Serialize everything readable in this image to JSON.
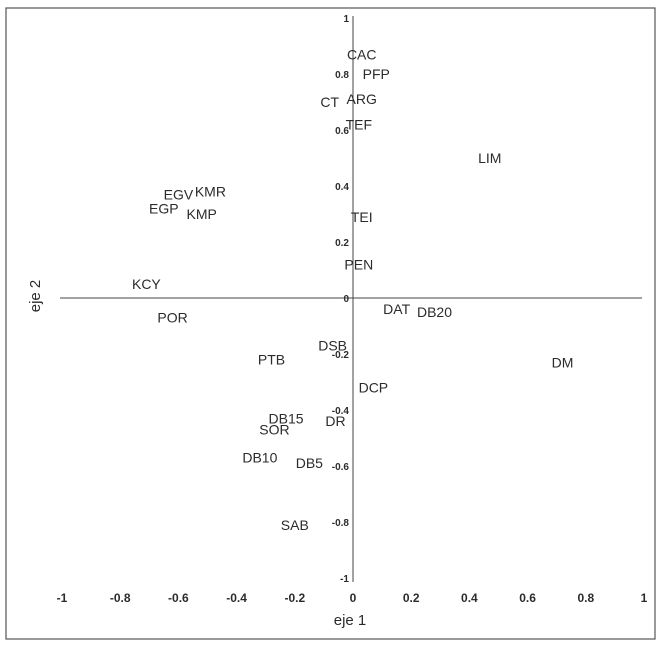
{
  "chart_data": {
    "type": "scatter",
    "title": "",
    "xlabel": "eje 1",
    "ylabel": "eje 2",
    "xlim": [
      -1,
      1
    ],
    "ylim": [
      -1,
      1
    ],
    "x_ticks": [
      "-1",
      "-0.8",
      "-0.6",
      "-0.4",
      "-0.2",
      "0",
      "0.2",
      "0.4",
      "0.6",
      "0.8",
      "1"
    ],
    "y_ticks": [
      "1",
      "0.8",
      "0.6",
      "0.4",
      "0.2",
      "0",
      "-0.2",
      "-0.4",
      "-0.6",
      "-0.8",
      "-1"
    ],
    "grid": false,
    "points": [
      {
        "label": "CAC",
        "x": 0.03,
        "y": 0.87
      },
      {
        "label": "PFP",
        "x": 0.08,
        "y": 0.8
      },
      {
        "label": "ARG",
        "x": 0.03,
        "y": 0.71
      },
      {
        "label": "CT",
        "x": -0.08,
        "y": 0.7
      },
      {
        "label": "TEF",
        "x": 0.02,
        "y": 0.62
      },
      {
        "label": "LIM",
        "x": 0.47,
        "y": 0.5
      },
      {
        "label": "EGV",
        "x": -0.6,
        "y": 0.37
      },
      {
        "label": "KMR",
        "x": -0.49,
        "y": 0.38
      },
      {
        "label": "EGP",
        "x": -0.65,
        "y": 0.32
      },
      {
        "label": "KMP",
        "x": -0.52,
        "y": 0.3
      },
      {
        "label": "TEI",
        "x": 0.03,
        "y": 0.29
      },
      {
        "label": "PEN",
        "x": 0.02,
        "y": 0.12
      },
      {
        "label": "KCY",
        "x": -0.71,
        "y": 0.05
      },
      {
        "label": "POR",
        "x": -0.62,
        "y": -0.07
      },
      {
        "label": "DAT",
        "x": 0.15,
        "y": -0.04
      },
      {
        "label": "DB20",
        "x": 0.28,
        "y": -0.05
      },
      {
        "label": "DSB",
        "x": -0.07,
        "y": -0.17
      },
      {
        "label": "PTB",
        "x": -0.28,
        "y": -0.22
      },
      {
        "label": "DM",
        "x": 0.72,
        "y": -0.23
      },
      {
        "label": "DCP",
        "x": 0.07,
        "y": -0.32
      },
      {
        "label": "DB15",
        "x": -0.23,
        "y": -0.43
      },
      {
        "label": "DR",
        "x": -0.06,
        "y": -0.44
      },
      {
        "label": "SOR",
        "x": -0.27,
        "y": -0.47
      },
      {
        "label": "DB10",
        "x": -0.32,
        "y": -0.57
      },
      {
        "label": "DB5",
        "x": -0.15,
        "y": -0.59
      },
      {
        "label": "SAB",
        "x": -0.2,
        "y": -0.81
      }
    ]
  }
}
